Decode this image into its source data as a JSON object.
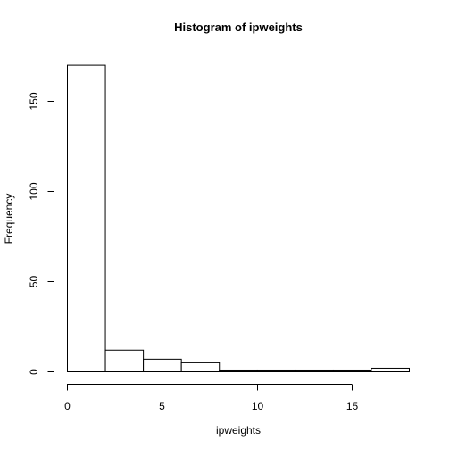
{
  "chart_data": {
    "type": "bar",
    "title": "Histogram of ipweights",
    "xlabel": "ipweights",
    "ylabel": "Frequency",
    "bin_edges": [
      0,
      2,
      4,
      6,
      8,
      10,
      12,
      14,
      16,
      18
    ],
    "values": [
      170,
      12,
      7,
      5,
      1,
      1,
      1,
      1,
      2
    ],
    "xlim": [
      0,
      18
    ],
    "ylim": [
      0,
      170
    ],
    "x_ticks": [
      0,
      5,
      10,
      15
    ],
    "y_ticks": [
      0,
      50,
      100,
      150
    ],
    "grid": false,
    "legend": "none",
    "colors": {
      "bar_fill": "#ffffff",
      "bar_stroke": "#000000",
      "axis": "#000000"
    }
  }
}
